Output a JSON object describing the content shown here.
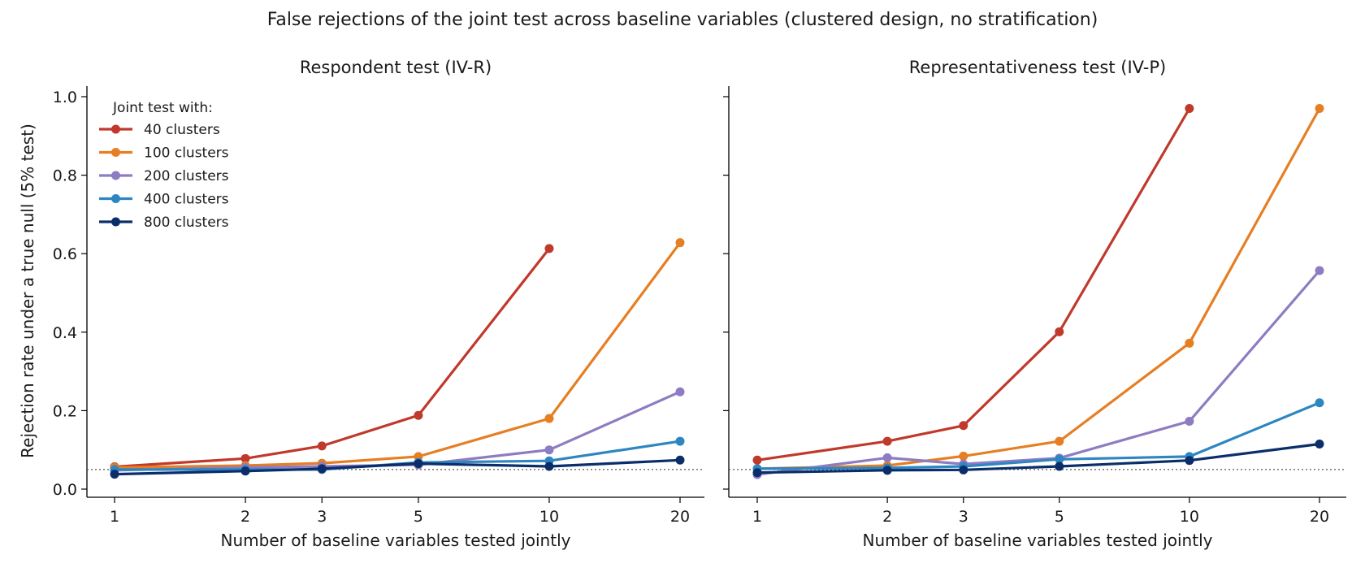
{
  "figure": {
    "title": "False rejections of the joint test across baseline variables (clustered design, no stratification)"
  },
  "shared": {
    "ylabel": "Rejection rate under a true null (5% test)",
    "xlabel": "Number of baseline variables tested jointly",
    "legend_title": "Joint test with:",
    "legend_placement": "top-left of left panel",
    "reference_line": 0.05
  },
  "chart_data": [
    {
      "type": "line",
      "title": "Respondent test (IV-R)",
      "xlabel": "Number of baseline variables tested jointly",
      "ylabel": "Rejection rate under a true null (5% test)",
      "x_scale": "log",
      "x": [
        1,
        2,
        3,
        5,
        10,
        20
      ],
      "xticks": [
        "1",
        "2",
        "3",
        "5",
        "10",
        "20"
      ],
      "ylim": [
        0,
        1
      ],
      "yticks": [
        "0.0",
        "0.2",
        "0.4",
        "0.6",
        "0.8",
        "1.0"
      ],
      "grid": false,
      "reference_line": 0.05,
      "series": [
        {
          "name": "40 clusters",
          "color": "#c0392b",
          "values": [
            0.057,
            0.078,
            0.11,
            0.188,
            0.613,
            null
          ]
        },
        {
          "name": "100 clusters",
          "color": "#e67e22",
          "values": [
            0.055,
            0.06,
            0.066,
            0.083,
            0.18,
            0.628
          ]
        },
        {
          "name": "200 clusters",
          "color": "#8e7cc3",
          "values": [
            0.048,
            0.055,
            0.058,
            0.062,
            0.1,
            0.248
          ]
        },
        {
          "name": "400 clusters",
          "color": "#2e86c1",
          "values": [
            0.05,
            0.05,
            0.05,
            0.068,
            0.072,
            0.122
          ]
        },
        {
          "name": "800 clusters",
          "color": "#0b2e6b",
          "values": [
            0.038,
            0.046,
            0.052,
            0.065,
            0.058,
            0.074
          ]
        }
      ]
    },
    {
      "type": "line",
      "title": "Representativeness test (IV-P)",
      "xlabel": "Number of baseline variables tested jointly",
      "ylabel": "",
      "x_scale": "log",
      "x": [
        1,
        2,
        3,
        5,
        10,
        20
      ],
      "xticks": [
        "1",
        "2",
        "3",
        "5",
        "10",
        "20"
      ],
      "ylim": [
        0,
        1
      ],
      "grid": false,
      "reference_line": 0.05,
      "series": [
        {
          "name": "40 clusters",
          "color": "#c0392b",
          "values": [
            0.074,
            0.122,
            0.162,
            0.401,
            0.97,
            null
          ]
        },
        {
          "name": "100 clusters",
          "color": "#e67e22",
          "values": [
            0.052,
            0.06,
            0.084,
            0.122,
            0.372,
            0.97
          ]
        },
        {
          "name": "200 clusters",
          "color": "#8e7cc3",
          "values": [
            0.037,
            0.08,
            0.064,
            0.079,
            0.173,
            0.557
          ]
        },
        {
          "name": "400 clusters",
          "color": "#2e86c1",
          "values": [
            0.052,
            0.054,
            0.058,
            0.076,
            0.083,
            0.22
          ]
        },
        {
          "name": "800 clusters",
          "color": "#0b2e6b",
          "values": [
            0.042,
            0.048,
            0.049,
            0.058,
            0.073,
            0.115
          ]
        }
      ]
    }
  ]
}
